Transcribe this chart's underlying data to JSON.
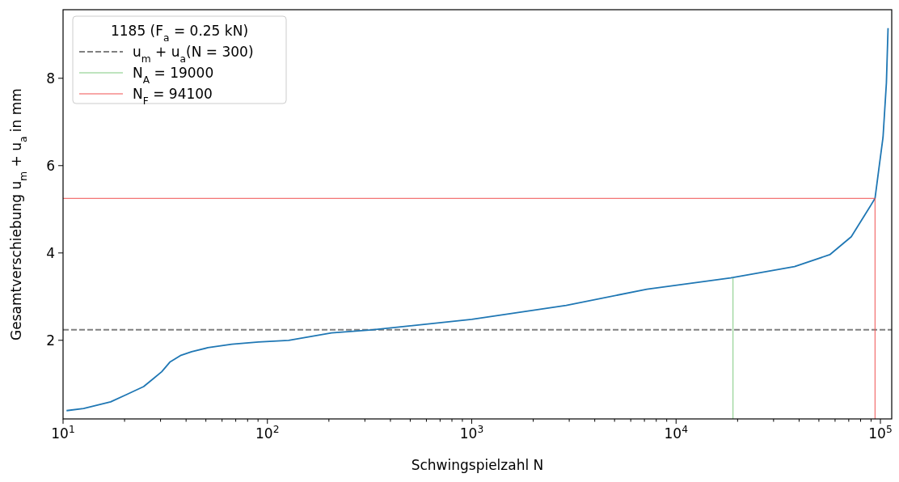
{
  "chart_data": {
    "type": "line",
    "xlabel": "Schwingspielzahl N",
    "ylabel": "Gesamtverschiebung u$_{m}$ + u$_{a}$ in mm",
    "legend_title": "1185 (F$_{a}$ = 0.25 kN)",
    "legend": "top left",
    "log": "x",
    "grid": false,
    "xlim": [
      10,
      113600
    ],
    "ylim": [
      0.2,
      9.57
    ],
    "xticks": [
      {
        "value": 10,
        "label": "10$^{1}$"
      },
      {
        "value": 20,
        "label": null
      },
      {
        "value": 30,
        "label": null
      },
      {
        "value": 40,
        "label": null
      },
      {
        "value": 50,
        "label": null
      },
      {
        "value": 60,
        "label": null
      },
      {
        "value": 70,
        "label": null
      },
      {
        "value": 80,
        "label": null
      },
      {
        "value": 90,
        "label": null
      },
      {
        "value": 100,
        "label": "10$^{2}$"
      },
      {
        "value": 200,
        "label": null
      },
      {
        "value": 300,
        "label": null
      },
      {
        "value": 400,
        "label": null
      },
      {
        "value": 500,
        "label": null
      },
      {
        "value": 600,
        "label": null
      },
      {
        "value": 700,
        "label": null
      },
      {
        "value": 800,
        "label": null
      },
      {
        "value": 900,
        "label": null
      },
      {
        "value": 1000,
        "label": "10$^{3}$"
      },
      {
        "value": 2000,
        "label": null
      },
      {
        "value": 3000,
        "label": null
      },
      {
        "value": 4000,
        "label": null
      },
      {
        "value": 5000,
        "label": null
      },
      {
        "value": 6000,
        "label": null
      },
      {
        "value": 7000,
        "label": null
      },
      {
        "value": 8000,
        "label": null
      },
      {
        "value": 9000,
        "label": null
      },
      {
        "value": 10000,
        "label": "10$^{4}$"
      },
      {
        "value": 20000,
        "label": null
      },
      {
        "value": 30000,
        "label": null
      },
      {
        "value": 40000,
        "label": null
      },
      {
        "value": 50000,
        "label": null
      },
      {
        "value": 60000,
        "label": null
      },
      {
        "value": 70000,
        "label": null
      },
      {
        "value": 80000,
        "label": null
      },
      {
        "value": 90000,
        "label": null
      },
      {
        "value": 100000,
        "label": "10$^{5}$"
      }
    ],
    "yticks": [
      2,
      4,
      6,
      8
    ],
    "series": [
      {
        "name": "u$_{m}$ + u$_{a}$(N = 300)",
        "color": "#808080",
        "line_style": "dashed",
        "x": [
          10,
          113600
        ],
        "values": [
          2.24,
          2.24
        ]
      },
      {
        "color": "#1f77b4",
        "x": [
          10.4,
          12.6,
          17.1,
          20.5,
          24.8,
          27.8,
          30.4,
          33.3,
          37.5,
          42.6,
          51.1,
          67,
          90.5,
          127,
          206,
          325,
          1000,
          2900,
          7200,
          18500,
          38000,
          56500,
          72000,
          90000,
          94100,
          98500,
          103000,
          107000,
          109000
        ],
        "values": [
          0.39,
          0.44,
          0.59,
          0.76,
          0.94,
          1.13,
          1.28,
          1.5,
          1.65,
          1.74,
          1.83,
          1.91,
          1.96,
          2.0,
          2.17,
          2.24,
          2.48,
          2.8,
          3.17,
          3.43,
          3.69,
          3.96,
          4.37,
          5.1,
          5.25,
          5.96,
          6.65,
          7.9,
          9.15
        ]
      },
      {
        "name": "N$_{A}$ = 19000",
        "color": "#7fc97f",
        "x": [
          19000,
          19000
        ],
        "values": [
          0.2,
          3.43
        ]
      },
      {
        "name": "N$_{F}$ = 94100",
        "color": "#f05050",
        "x": [
          10,
          94100,
          94100
        ],
        "values": [
          5.25,
          5.25,
          0.2
        ]
      }
    ]
  }
}
